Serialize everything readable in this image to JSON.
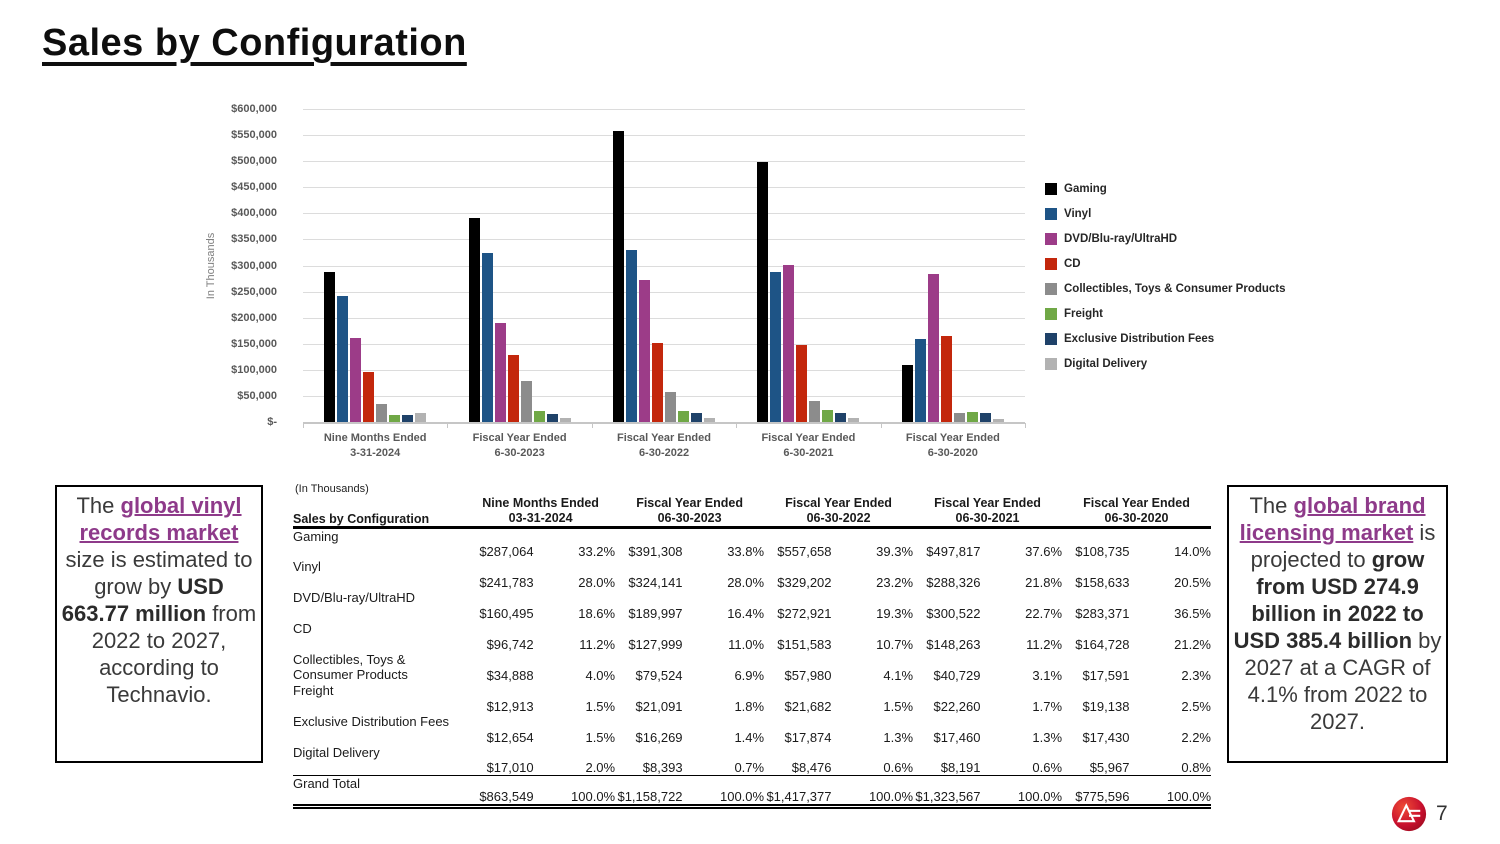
{
  "slide": {
    "title": "Sales by Configuration",
    "page_number": "7"
  },
  "chart_data": {
    "type": "bar",
    "title": "",
    "ylabel": "In Thousands",
    "ylim": [
      0,
      600000
    ],
    "grid": true,
    "legend_position": "right",
    "y_tick_labels": [
      "$600,000",
      "$550,000",
      "$500,000",
      "$450,000",
      "$400,000",
      "$350,000",
      "$300,000",
      "$250,000",
      "$200,000",
      "$150,000",
      "$100,000",
      "$50,000",
      "$-"
    ],
    "categories": [
      "Nine Months Ended 3-31-2024",
      "Fiscal Year Ended 6-30-2023",
      "Fiscal Year Ended 6-30-2022",
      "Fiscal Year Ended 6-30-2021",
      "Fiscal Year Ended 6-30-2020"
    ],
    "categories_lines": [
      [
        "Nine Months Ended",
        "3-31-2024"
      ],
      [
        "Fiscal Year Ended",
        "6-30-2023"
      ],
      [
        "Fiscal Year Ended",
        "6-30-2022"
      ],
      [
        "Fiscal Year Ended",
        "6-30-2021"
      ],
      [
        "Fiscal Year Ended",
        "6-30-2020"
      ]
    ],
    "series": [
      {
        "name": "Gaming",
        "color": "#000000",
        "values": [
          287064,
          391308,
          557658,
          497817,
          108735
        ]
      },
      {
        "name": "Vinyl",
        "color": "#1e5486",
        "values": [
          241783,
          324141,
          329202,
          288326,
          158633
        ]
      },
      {
        "name": "DVD/Blu-ray/UltraHD",
        "color": "#9c3c88",
        "values": [
          160495,
          189997,
          272921,
          300522,
          283371
        ]
      },
      {
        "name": "CD",
        "color": "#c3270c",
        "values": [
          96742,
          127999,
          151583,
          148263,
          164728
        ]
      },
      {
        "name": "Collectibles, Toys & Consumer Products",
        "color": "#8c8c8c",
        "values": [
          34888,
          79524,
          57980,
          40729,
          17591
        ]
      },
      {
        "name": "Freight",
        "color": "#70a846",
        "values": [
          12913,
          21091,
          21682,
          22260,
          19138
        ]
      },
      {
        "name": "Exclusive Distribution Fees",
        "color": "#1f4269",
        "values": [
          12654,
          16269,
          17874,
          17460,
          17430
        ]
      },
      {
        "name": "Digital Delivery",
        "color": "#b2b2b2",
        "values": [
          17010,
          8393,
          8476,
          8191,
          5967
        ]
      }
    ]
  },
  "table": {
    "units_note": "(In Thousands)",
    "corner_header": "Sales by Configuration",
    "col_headers": [
      [
        "Nine Months Ended",
        "03-31-2024"
      ],
      [
        "Fiscal Year Ended",
        "06-30-2023"
      ],
      [
        "Fiscal Year Ended",
        "06-30-2022"
      ],
      [
        "Fiscal Year Ended",
        "06-30-2021"
      ],
      [
        "Fiscal Year Ended",
        "06-30-2020"
      ]
    ],
    "rows": [
      {
        "label": "Gaming",
        "cells": [
          "$287,064",
          "33.2%",
          "$391,308",
          "33.8%",
          "$557,658",
          "39.3%",
          "$497,817",
          "37.6%",
          "$108,735",
          "14.0%"
        ]
      },
      {
        "label": "Vinyl",
        "cells": [
          "$241,783",
          "28.0%",
          "$324,141",
          "28.0%",
          "$329,202",
          "23.2%",
          "$288,326",
          "21.8%",
          "$158,633",
          "20.5%"
        ]
      },
      {
        "label": "DVD/Blu-ray/UltraHD",
        "cells": [
          "$160,495",
          "18.6%",
          "$189,997",
          "16.4%",
          "$272,921",
          "19.3%",
          "$300,522",
          "22.7%",
          "$283,371",
          "36.5%"
        ]
      },
      {
        "label": "CD",
        "cells": [
          "$96,742",
          "11.2%",
          "$127,999",
          "11.0%",
          "$151,583",
          "10.7%",
          "$148,263",
          "11.2%",
          "$164,728",
          "21.2%"
        ]
      },
      {
        "label": "Collectibles, Toys & Consumer Products",
        "cells": [
          "$34,888",
          "4.0%",
          "$79,524",
          "6.9%",
          "$57,980",
          "4.1%",
          "$40,729",
          "3.1%",
          "$17,591",
          "2.3%"
        ]
      },
      {
        "label": "Freight",
        "cells": [
          "$12,913",
          "1.5%",
          "$21,091",
          "1.8%",
          "$21,682",
          "1.5%",
          "$22,260",
          "1.7%",
          "$19,138",
          "2.5%"
        ]
      },
      {
        "label": "Exclusive Distribution Fees",
        "cells": [
          "$12,654",
          "1.5%",
          "$16,269",
          "1.4%",
          "$17,874",
          "1.3%",
          "$17,460",
          "1.3%",
          "$17,430",
          "2.2%"
        ]
      },
      {
        "label": "Digital Delivery",
        "cells": [
          "$17,010",
          "2.0%",
          "$8,393",
          "0.7%",
          "$8,476",
          "0.6%",
          "$8,191",
          "0.6%",
          "$5,967",
          "0.8%"
        ]
      }
    ],
    "grand_total": {
      "label": "Grand Total",
      "cells": [
        "$863,549",
        "100.0%",
        "$1,158,722",
        "100.0%",
        "$1,417,377",
        "100.0%",
        "$1,323,567",
        "100.0%",
        "$775,596",
        "100.0%"
      ]
    }
  },
  "notes": {
    "left": {
      "segments": [
        {
          "text": "The ",
          "style": "normal"
        },
        {
          "text": "global vinyl records market",
          "style": "link"
        },
        {
          "text": " size is estimated to grow by ",
          "style": "normal"
        },
        {
          "text": "USD 663.77 million",
          "style": "bold"
        },
        {
          "text": " from 2022 to 2027, according to Technavio.",
          "style": "normal"
        }
      ]
    },
    "right": {
      "segments": [
        {
          "text": "The ",
          "style": "normal"
        },
        {
          "text": "global brand licensing market",
          "style": "link"
        },
        {
          "text": " is projected to ",
          "style": "normal"
        },
        {
          "text": "grow from USD 274.9 billion in 2022 to USD 385.4 billion",
          "style": "bold"
        },
        {
          "text": " by 2027 at a CAGR of 4.1% from 2022 to 2027.",
          "style": "normal"
        }
      ]
    }
  },
  "colors": {
    "accent_purple": "#8e3a8a",
    "logo_red": "#c8102e",
    "gridline": "#dcdcdc",
    "axis_text": "#595959"
  }
}
